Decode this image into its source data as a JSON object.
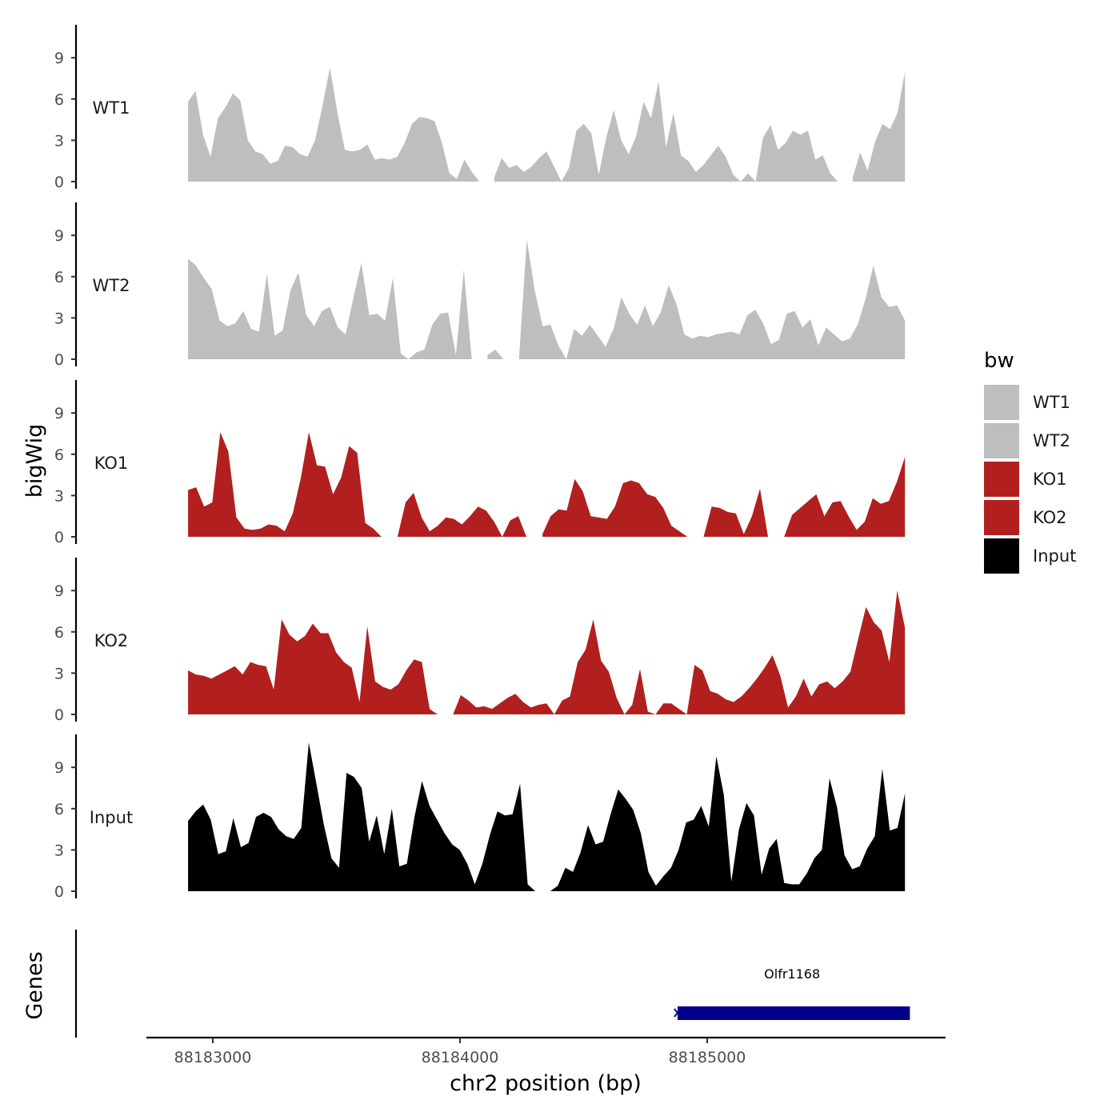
{
  "chart_data": {
    "type": "area",
    "ylabel": "bigWig",
    "xlabel": "chr2 position (bp)",
    "genes_label": "Genes",
    "xlim": [
      88182700,
      88186000
    ],
    "x_ticks": [
      88183000,
      88184000,
      88185000
    ],
    "x_tick_labels": [
      "88183000",
      "88184000",
      "88185000"
    ],
    "ylim": [
      0,
      11.5
    ],
    "y_ticks": [
      0,
      3,
      6,
      9
    ],
    "y_tick_labels": [
      "0",
      "3",
      "6",
      "9"
    ],
    "legend": {
      "title": "bw",
      "entries": [
        {
          "label": "WT1",
          "color": "#bebebe"
        },
        {
          "label": "WT2",
          "color": "#bebebe"
        },
        {
          "label": "KO1",
          "color": "#b21f1f"
        },
        {
          "label": "KO2",
          "color": "#b21f1f"
        },
        {
          "label": "Input",
          "color": "#000000"
        }
      ]
    },
    "series": [
      {
        "name": "WT1",
        "color": "#bebebe",
        "x_start": 88182900,
        "x_end": 88185800,
        "values": [
          5.8,
          6.6,
          3.4,
          1.8,
          4.6,
          5.4,
          6.4,
          5.9,
          3.0,
          2.2,
          2.0,
          1.3,
          1.5,
          2.6,
          2.5,
          2.0,
          1.8,
          3.0,
          5.5,
          8.3,
          5.0,
          2.3,
          2.2,
          2.3,
          2.7,
          1.6,
          1.7,
          1.6,
          1.8,
          2.8,
          4.2,
          4.7,
          4.6,
          4.4,
          2.8,
          0.6,
          0.2,
          1.6,
          0.7,
          0.0,
          null,
          0.3,
          1.7,
          1.0,
          1.2,
          0.7,
          1.1,
          1.7,
          2.2,
          1.1,
          0.0,
          1.0,
          3.7,
          4.2,
          3.5,
          0.5,
          3.2,
          5.2,
          3.0,
          2.0,
          3.3,
          5.8,
          4.6,
          7.3,
          2.5,
          5.0,
          1.9,
          1.5,
          0.7,
          1.2,
          1.9,
          2.6,
          1.8,
          0.5,
          0.0,
          0.6,
          0.0,
          3.2,
          4.1,
          2.3,
          2.8,
          3.7,
          3.4,
          3.7,
          1.6,
          1.9,
          0.6,
          0.0,
          null,
          0.3,
          2.1,
          0.8,
          2.9,
          4.2,
          3.8,
          5.0,
          8.0
        ]
      },
      {
        "name": "WT2",
        "color": "#bebebe",
        "x_start": 88182900,
        "x_end": 88185800,
        "values": [
          7.3,
          6.8,
          5.9,
          5.1,
          2.8,
          2.4,
          2.6,
          3.5,
          2.2,
          2.0,
          6.2,
          1.7,
          2.1,
          5.0,
          6.3,
          3.2,
          2.4,
          3.5,
          3.8,
          2.3,
          1.8,
          4.5,
          7.0,
          3.2,
          3.3,
          2.8,
          5.9,
          0.4,
          0.0,
          0.5,
          0.7,
          2.5,
          3.3,
          3.4,
          0.3,
          6.5,
          0.0,
          null,
          0.3,
          0.7,
          0.0,
          null,
          0.0,
          8.7,
          5.0,
          2.4,
          2.5,
          1.0,
          0.0,
          2.2,
          1.7,
          2.5,
          1.7,
          0.9,
          2.2,
          4.5,
          3.3,
          2.5,
          3.9,
          2.4,
          3.4,
          5.4,
          4.0,
          1.8,
          1.5,
          1.7,
          1.6,
          1.8,
          1.9,
          2.0,
          1.8,
          3.2,
          3.6,
          2.6,
          1.1,
          1.4,
          3.3,
          3.5,
          2.3,
          2.9,
          1.0,
          2.3,
          1.8,
          1.3,
          1.5,
          2.5,
          4.4,
          6.8,
          4.5,
          3.8,
          3.9,
          2.8
        ]
      },
      {
        "name": "KO1",
        "color": "#b21f1f",
        "x_start": 88182900,
        "x_end": 88185800,
        "values": [
          3.4,
          3.6,
          2.2,
          2.5,
          7.6,
          6.2,
          1.4,
          0.6,
          0.5,
          0.6,
          0.9,
          0.8,
          0.4,
          1.7,
          4.3,
          7.6,
          5.2,
          5.1,
          3.1,
          4.3,
          6.6,
          6.1,
          1.0,
          0.6,
          0.0,
          null,
          0.0,
          2.5,
          3.2,
          1.4,
          0.4,
          0.8,
          1.4,
          1.3,
          0.9,
          1.5,
          2.2,
          1.9,
          1.1,
          0.0,
          1.2,
          1.5,
          0.0,
          null,
          0.2,
          1.5,
          2.0,
          1.9,
          4.2,
          3.3,
          1.5,
          1.4,
          1.3,
          2.2,
          3.9,
          4.1,
          3.9,
          3.1,
          2.9,
          2.1,
          0.8,
          0.4,
          0.0,
          null,
          0.0,
          2.2,
          2.1,
          1.8,
          1.7,
          0.2,
          1.5,
          3.5,
          0.0,
          null,
          0.0,
          1.6,
          2.1,
          2.6,
          3.1,
          1.5,
          2.5,
          2.6,
          1.5,
          0.5,
          1.1,
          2.8,
          2.4,
          2.6,
          4.0,
          5.8
        ]
      },
      {
        "name": "KO2",
        "color": "#b21f1f",
        "x_start": 88182900,
        "x_end": 88185800,
        "values": [
          3.2,
          2.9,
          2.8,
          2.6,
          2.9,
          3.2,
          3.5,
          2.9,
          3.8,
          3.6,
          3.5,
          1.8,
          6.9,
          5.8,
          5.3,
          5.7,
          6.6,
          5.9,
          5.9,
          4.5,
          3.8,
          3.4,
          0.9,
          6.4,
          2.4,
          2.0,
          1.8,
          2.2,
          3.2,
          4.0,
          3.8,
          0.4,
          0.0,
          null,
          0.0,
          1.4,
          1.0,
          0.5,
          0.6,
          0.4,
          0.8,
          1.2,
          1.5,
          0.9,
          0.5,
          0.7,
          0.8,
          0.0,
          1.0,
          1.3,
          3.8,
          4.7,
          6.9,
          3.9,
          3.1,
          1.2,
          0.0,
          0.7,
          3.3,
          0.2,
          0.0,
          0.8,
          0.8,
          0.4,
          0.0,
          3.6,
          3.2,
          1.7,
          1.5,
          1.1,
          0.9,
          1.3,
          1.9,
          2.6,
          3.4,
          4.3,
          2.8,
          0.5,
          1.3,
          2.6,
          1.3,
          2.2,
          2.4,
          1.9,
          2.4,
          3.1,
          5.5,
          7.8,
          6.7,
          6.1,
          3.8,
          9.0,
          6.3
        ]
      },
      {
        "name": "Input",
        "color": "#000000",
        "x_start": 88182900,
        "x_end": 88185800,
        "values": [
          5.1,
          5.8,
          6.3,
          5.2,
          2.7,
          2.9,
          5.3,
          3.2,
          3.5,
          5.4,
          5.7,
          5.4,
          4.5,
          4.0,
          3.8,
          4.6,
          10.8,
          7.8,
          4.8,
          2.4,
          1.7,
          8.6,
          8.3,
          7.5,
          3.6,
          5.5,
          2.7,
          6.0,
          1.8,
          2.0,
          5.4,
          8.0,
          6.2,
          5.2,
          4.2,
          3.4,
          3.0,
          2.0,
          0.5,
          2.0,
          4.1,
          5.8,
          5.5,
          5.6,
          7.8,
          0.5,
          0.0,
          null,
          0.0,
          0.4,
          1.7,
          1.4,
          2.8,
          4.8,
          3.4,
          3.6,
          5.6,
          7.4,
          6.7,
          5.9,
          4.2,
          1.4,
          0.4,
          1.1,
          1.7,
          3.0,
          5.0,
          5.2,
          6.2,
          4.7,
          9.8,
          7.0,
          0.7,
          4.5,
          6.4,
          5.5,
          1.2,
          3.1,
          3.8,
          0.6,
          0.5,
          0.5,
          1.3,
          2.4,
          3.0,
          8.2,
          6.1,
          2.6,
          1.6,
          1.8,
          3.1,
          4.0,
          8.9,
          4.4,
          4.6,
          7.1
        ]
      }
    ],
    "genes": [
      {
        "name": "Olfr1168",
        "start": 88184880,
        "end": 88185820,
        "strand": "-",
        "color": "#00008b"
      }
    ]
  }
}
